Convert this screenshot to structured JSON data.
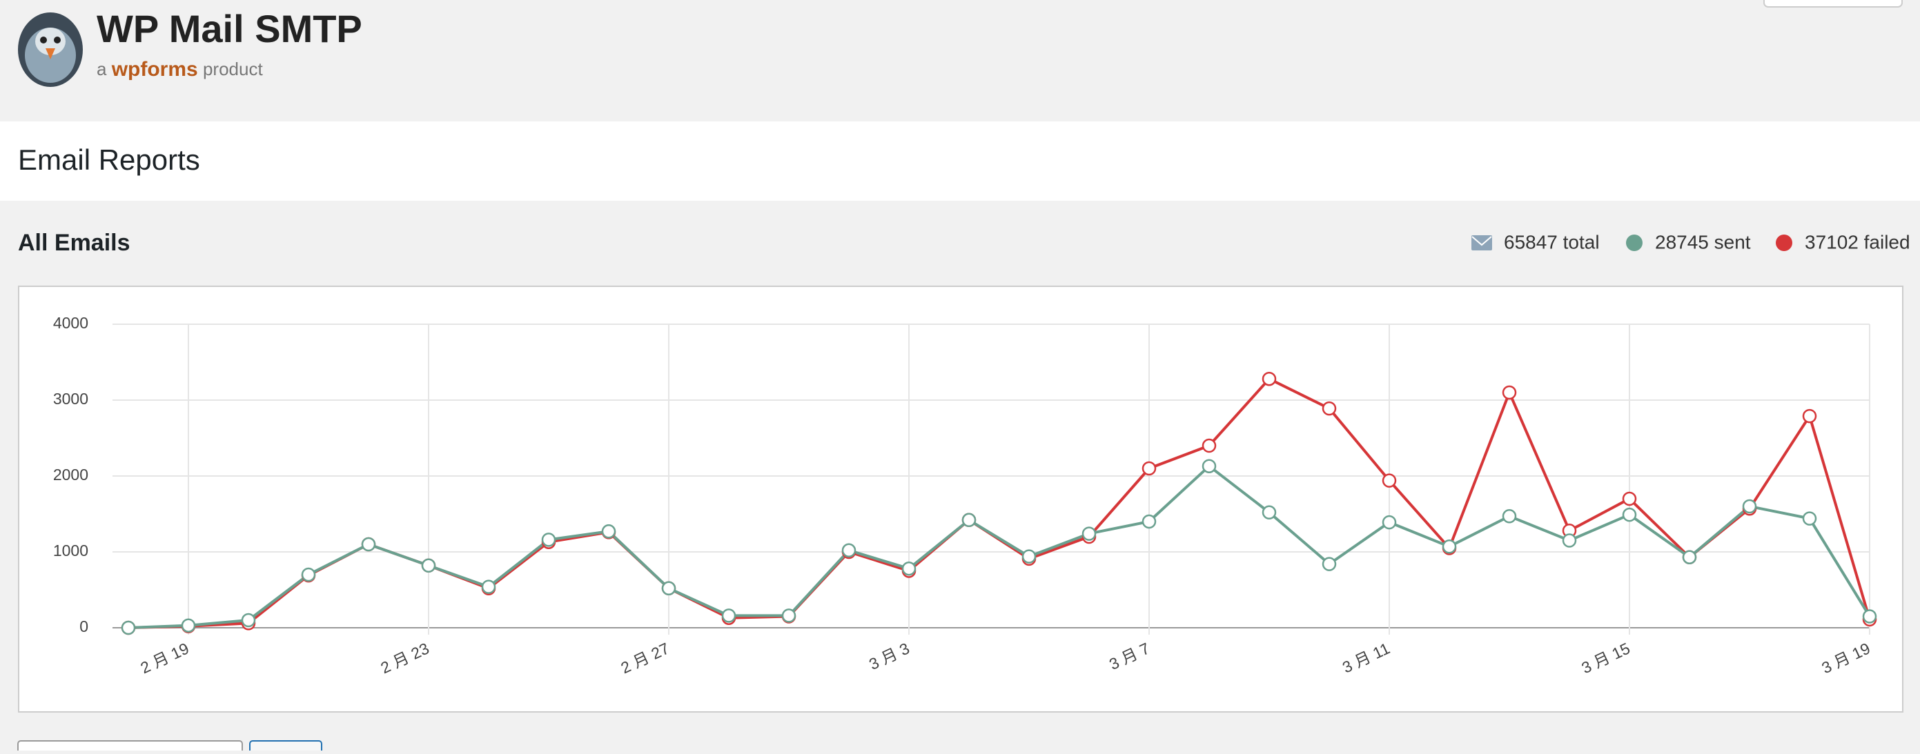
{
  "header": {
    "product": "WP Mail SMTP",
    "tagline_prefix": "a",
    "tagline_brand": "wpforms",
    "tagline_suffix": "product"
  },
  "page_title": "Email Reports",
  "section_title": "All Emails",
  "total_label": "65847 total",
  "chart_data": {
    "type": "line",
    "categories": [
      null,
      "2 月 19",
      null,
      null,
      null,
      "2 月 23",
      null,
      null,
      null,
      "2 月 27",
      null,
      null,
      null,
      "3 月 3",
      null,
      null,
      null,
      "3 月 7",
      null,
      null,
      null,
      "3 月 11",
      null,
      null,
      null,
      "3 月 15",
      null,
      null,
      null,
      "3 月 19"
    ],
    "series": [
      {
        "name": "37102 failed",
        "color": "#d63638",
        "values": [
          0,
          20,
          60,
          690,
          1100,
          820,
          520,
          1130,
          1260,
          520,
          130,
          150,
          1000,
          750,
          1420,
          910,
          1200,
          2100,
          2400,
          3280,
          2890,
          1940,
          1050,
          3100,
          1280,
          1700,
          930,
          1570,
          2790,
          110
        ]
      },
      {
        "name": "28745 sent",
        "color": "#6aa08f",
        "values": [
          0,
          30,
          100,
          700,
          1100,
          820,
          540,
          1160,
          1270,
          520,
          160,
          160,
          1020,
          780,
          1420,
          940,
          1240,
          1400,
          2130,
          1520,
          840,
          1390,
          1070,
          1470,
          1150,
          1490,
          930,
          1600,
          1440,
          150
        ]
      }
    ],
    "ylim": [
      0,
      4000
    ],
    "yticks": [
      0,
      1000,
      2000,
      3000,
      4000
    ],
    "grid": true
  }
}
